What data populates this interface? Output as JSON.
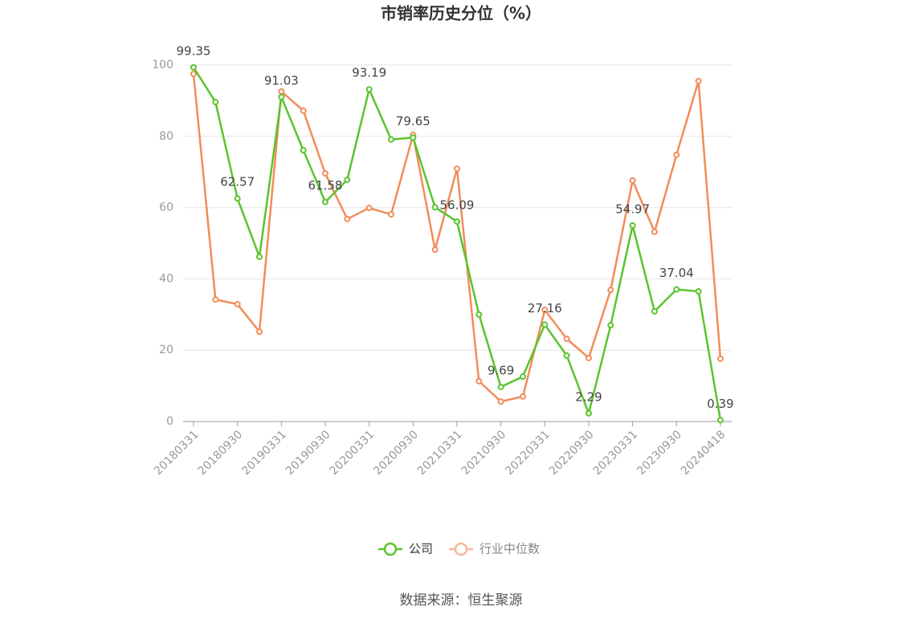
{
  "chart_data": {
    "type": "line",
    "title": "市销率历史分位（%）",
    "source": "数据来源：恒生聚源",
    "categories": [
      "20180331",
      null,
      "20180930",
      null,
      "20190331",
      null,
      "20190930",
      null,
      "20200331",
      null,
      "20200930",
      null,
      "20210331",
      null,
      "20210930",
      null,
      "20220331",
      null,
      "20220930",
      null,
      "20230331",
      null,
      "20230930",
      null,
      "20240418"
    ],
    "series": [
      {
        "name": "公司",
        "color": "#5ac42d",
        "values": [
          99.35,
          89.6,
          62.57,
          46.2,
          91.03,
          76.1,
          61.58,
          67.8,
          93.19,
          79.1,
          79.65,
          60.1,
          56.09,
          30.0,
          9.69,
          12.6,
          27.16,
          18.5,
          2.29,
          27.0,
          54.97,
          30.9,
          37.04,
          36.5,
          0.39
        ]
      },
      {
        "name": "行业中位数",
        "color": "#f28c5a",
        "values": [
          97.5,
          34.2,
          32.9,
          25.2,
          92.6,
          87.2,
          69.6,
          56.8,
          59.9,
          58.1,
          80.4,
          48.2,
          70.9,
          11.3,
          5.6,
          7.0,
          31.3,
          23.2,
          17.8,
          36.9,
          67.6,
          53.2,
          74.8,
          95.5,
          17.6
        ]
      }
    ],
    "ylim": [
      0,
      100
    ],
    "yticks": [
      0,
      20,
      40,
      60,
      80,
      100
    ],
    "grid": true,
    "legend": "bottom"
  }
}
